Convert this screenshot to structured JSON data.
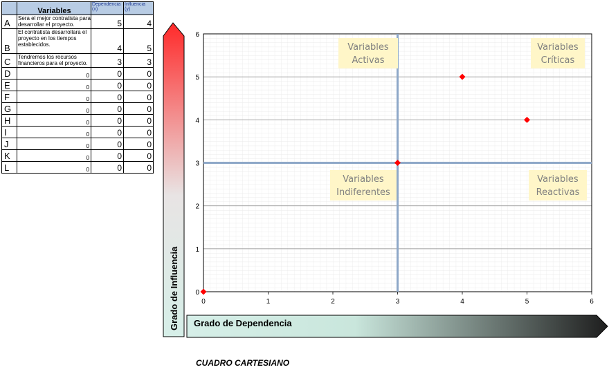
{
  "table": {
    "header": {
      "variables": "Variables",
      "dependencia": "Dependencia (x)",
      "influencia": "Influencia (y)"
    },
    "rows": [
      {
        "letter": "A",
        "desc": "Sera el mejor contratista para desarrollar el proyecto.",
        "x": "5",
        "y": "4"
      },
      {
        "letter": "B",
        "desc": "El contratista desarrollara el proyecto en los tiempos establecidos.",
        "x": "4",
        "y": "5"
      },
      {
        "letter": "C",
        "desc": "Tendremos los recursos financieros para el proyecto.",
        "x": "3",
        "y": "3"
      },
      {
        "letter": "D",
        "desc": "0",
        "x": "0",
        "y": "0"
      },
      {
        "letter": "E",
        "desc": "0",
        "x": "0",
        "y": "0"
      },
      {
        "letter": "F",
        "desc": "0",
        "x": "0",
        "y": "0"
      },
      {
        "letter": "G",
        "desc": "0",
        "x": "0",
        "y": "0"
      },
      {
        "letter": "H",
        "desc": "0",
        "x": "0",
        "y": "0"
      },
      {
        "letter": "I",
        "desc": "0",
        "x": "0",
        "y": "0"
      },
      {
        "letter": "J",
        "desc": "0",
        "x": "0",
        "y": "0"
      },
      {
        "letter": "K",
        "desc": "0",
        "x": "0",
        "y": "0"
      },
      {
        "letter": "L",
        "desc": "0",
        "x": "0",
        "y": "0"
      }
    ]
  },
  "chart_data": {
    "type": "scatter",
    "title": "",
    "xlabel": "Grado de Dependencia",
    "ylabel": "Grado de Influencia",
    "xlim": [
      0,
      6
    ],
    "ylim": [
      0,
      6
    ],
    "xticks": [
      0,
      1,
      2,
      3,
      4,
      5,
      6
    ],
    "yticks": [
      0,
      1,
      2,
      3,
      4,
      5,
      6
    ],
    "grid": true,
    "points": [
      {
        "x": 5,
        "y": 4
      },
      {
        "x": 4,
        "y": 5
      },
      {
        "x": 3,
        "y": 3
      },
      {
        "x": 0,
        "y": 0
      }
    ],
    "divider_x": 3,
    "divider_y": 3,
    "quadrants": [
      {
        "lines": [
          "Variables",
          "Activas"
        ]
      },
      {
        "lines": [
          "Variables",
          "Críticas"
        ]
      },
      {
        "lines": [
          "Variables",
          "Indiferentes"
        ]
      },
      {
        "lines": [
          "Variables",
          "Reactivas"
        ]
      }
    ],
    "colors": {
      "marker": "#ff0000",
      "divider": "#8ea8c8",
      "quadrant_box": "#fff6c8",
      "y_arrow_top": "#ff2a2a",
      "y_arrow_bottom": "#d6efe8",
      "x_arrow_left": "#d6efe8",
      "x_arrow_right": "#1e1e1e"
    }
  },
  "caption": "CUADRO CARTESIANO"
}
